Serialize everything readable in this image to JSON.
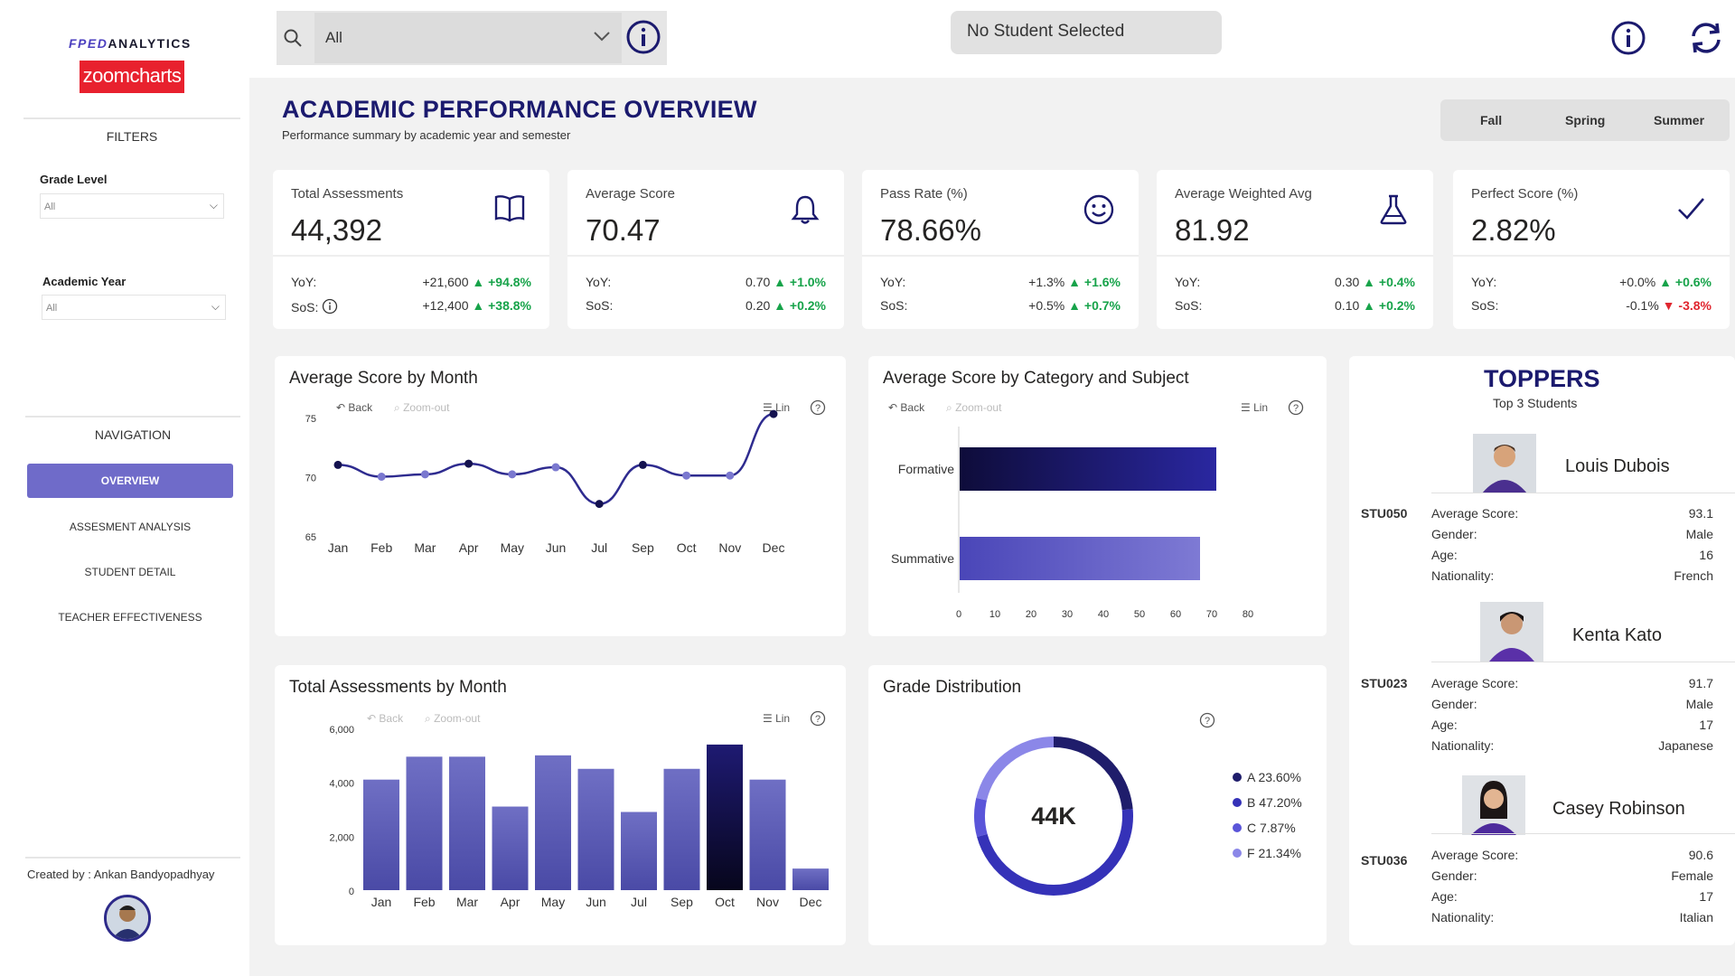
{
  "sidebar": {
    "brand_prefix": "FPED",
    "brand_text": "ANALYTICS",
    "brand_logo": "zoomcharts",
    "filters_title": "FILTERS",
    "grade_level_label": "Grade Level",
    "grade_level_value": "All",
    "academic_year_label": "Academic Year",
    "academic_year_value": "All",
    "navigation_title": "NAVIGATION",
    "nav_items": [
      {
        "label": "OVERVIEW"
      },
      {
        "label": "ASSESMENT ANALYSIS"
      },
      {
        "label": "STUDENT DETAIL"
      },
      {
        "label": "TEACHER EFFECTIVENESS"
      }
    ],
    "credit": "Created by : Ankan Bandyopadhyay"
  },
  "topbar": {
    "search_value": "All",
    "student_status": "No Student Selected"
  },
  "header": {
    "title": "ACADEMIC PERFORMANCE OVERVIEW",
    "subtitle": "Performance summary by academic year and semester",
    "seasons": [
      "Fall",
      "Spring",
      "Summer"
    ]
  },
  "colors": {
    "accent": "#1b1a6e",
    "bar": "#6f6fc4",
    "highlight": "#14124f",
    "positive": "#17a34a",
    "negative": "#e0262f"
  },
  "kpis": [
    {
      "label": "Total Assessments",
      "value": "44,392",
      "icon": "book-icon",
      "yoy_label": "YoY:",
      "yoy_abs": "+21,600",
      "yoy_pct": "+94.8%",
      "yoy_dir": "up",
      "sos_label": "SoS:",
      "sos_abs": "+12,400",
      "sos_pct": "+38.8%",
      "sos_dir": "up"
    },
    {
      "label": "Average Score",
      "value": "70.47",
      "icon": "bell-icon",
      "yoy_label": "YoY:",
      "yoy_abs": "0.70",
      "yoy_pct": "+1.0%",
      "yoy_dir": "up",
      "sos_label": "SoS:",
      "sos_abs": "0.20",
      "sos_pct": "+0.2%",
      "sos_dir": "up"
    },
    {
      "label": "Pass Rate (%)",
      "value": "78.66%",
      "icon": "smiley-icon",
      "yoy_label": "YoY:",
      "yoy_abs": "+1.3%",
      "yoy_pct": "+1.6%",
      "yoy_dir": "up",
      "sos_label": "SoS:",
      "sos_abs": "+0.5%",
      "sos_pct": "+0.7%",
      "sos_dir": "up"
    },
    {
      "label": "Average Weighted Avg",
      "value": "81.92",
      "icon": "flask-icon",
      "yoy_label": "YoY:",
      "yoy_abs": "0.30",
      "yoy_pct": "+0.4%",
      "yoy_dir": "up",
      "sos_label": "SoS:",
      "sos_abs": "0.10",
      "sos_pct": "+0.2%",
      "sos_dir": "up"
    },
    {
      "label": "Perfect Score (%)",
      "value": "2.82%",
      "icon": "check-icon",
      "yoy_label": "YoY:",
      "yoy_abs": "+0.0%",
      "yoy_pct": "+0.6%",
      "yoy_dir": "up",
      "sos_label": "SoS:",
      "sos_abs": "-0.1%",
      "sos_pct": "-3.8%",
      "sos_dir": "down"
    }
  ],
  "toolbar": {
    "back": "Back",
    "zoom_out": "Zoom-out",
    "lin": "Lin"
  },
  "chart_titles": {
    "avg_by_month": "Average Score by Month",
    "avg_by_category": "Average Score by Category and Subject",
    "total_by_month": "Total Assessments by Month",
    "grade_distribution": "Grade Distribution"
  },
  "chart_data": [
    {
      "type": "line",
      "title": "Average Score by Month",
      "categories": [
        "Jan",
        "Feb",
        "Mar",
        "Apr",
        "May",
        "Jun",
        "Jul",
        "Sep",
        "Oct",
        "Nov",
        "Dec"
      ],
      "values": [
        71.0,
        70.0,
        70.2,
        71.1,
        70.2,
        70.8,
        67.7,
        71.0,
        70.1,
        70.1,
        75.3
      ],
      "yticks": [
        65,
        70,
        75
      ],
      "ylim": [
        65,
        75
      ]
    },
    {
      "type": "bar",
      "orientation": "horizontal",
      "title": "Average Score by Category and Subject",
      "categories": [
        "Formative",
        "Summative"
      ],
      "values": [
        71.0,
        66.5
      ],
      "xticks": [
        0,
        10,
        20,
        30,
        40,
        50,
        60,
        70,
        80
      ],
      "xlim": [
        0,
        80
      ]
    },
    {
      "type": "bar",
      "title": "Total Assessments by Month",
      "categories": [
        "Jan",
        "Feb",
        "Mar",
        "Apr",
        "May",
        "Jun",
        "Jul",
        "Sep",
        "Oct",
        "Nov",
        "Dec"
      ],
      "values": [
        4100,
        4950,
        4950,
        3100,
        5000,
        4500,
        2900,
        4500,
        5400,
        4100,
        800
      ],
      "yticks": [
        "0",
        "2,000",
        "4,000",
        "6,000"
      ],
      "ylim": [
        0,
        6000
      ],
      "highlight": "Oct"
    },
    {
      "type": "pie",
      "title": "Grade Distribution",
      "center_label": "44K",
      "categories": [
        "A",
        "B",
        "C",
        "F"
      ],
      "values": [
        23.6,
        47.2,
        7.87,
        21.34
      ],
      "legend_labels": [
        "A 23.60%",
        "B 47.20%",
        "C 7.87%",
        "F 21.34%"
      ],
      "colors": [
        "#1f1d6b",
        "#3532b8",
        "#5a55d9",
        "#8b87e8"
      ]
    }
  ],
  "toppers": {
    "title": "TOPPERS",
    "subtitle": "Top 3 Students",
    "students": [
      {
        "id": "STU050",
        "name": "Louis Dubois",
        "avg_label": "Average Score:",
        "avg": "93.1",
        "gender_label": "Gender:",
        "gender": "Male",
        "age_label": "Age:",
        "age": "16",
        "nat_label": "Nationality:",
        "nationality": "French"
      },
      {
        "id": "STU023",
        "name": "Kenta Kato",
        "avg_label": "Average Score:",
        "avg": "91.7",
        "gender_label": "Gender:",
        "gender": "Male",
        "age_label": "Age:",
        "age": "17",
        "nat_label": "Nationality:",
        "nationality": "Japanese"
      },
      {
        "id": "STU036",
        "name": "Casey Robinson",
        "avg_label": "Average Score:",
        "avg": "90.6",
        "gender_label": "Gender:",
        "gender": "Female",
        "age_label": "Age:",
        "age": "17",
        "nat_label": "Nationality:",
        "nationality": "Italian"
      }
    ]
  }
}
